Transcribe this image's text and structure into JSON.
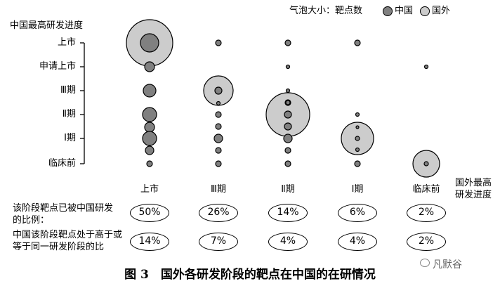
{
  "legend": {
    "size_label": "气泡大小：靶点数",
    "china": "中国",
    "foreign": "国外",
    "china_color": "#808080",
    "foreign_color": "#cccccc"
  },
  "y_axis_title": "中国最高研发进度",
  "x_axis_title": "国外最高研发进度",
  "caption": "图 3　国外各研发阶段的靶点在中国的在研情况",
  "watermark": "凡默谷",
  "stats": {
    "row1_label": "该阶段靶点已被中国研发的比例：",
    "row2_label": "中国该阶段靶点处于高于或等于同一研发阶段的比",
    "row1": [
      "50%",
      "26%",
      "14%",
      "6%",
      "2%"
    ],
    "row2": [
      "14%",
      "7%",
      "4%",
      "4%",
      "2%"
    ]
  },
  "chart_data": {
    "type": "scatter",
    "subtype": "bubble",
    "x_categories": [
      "上市",
      "Ⅲ期",
      "Ⅱ期",
      "Ⅰ期",
      "临床前"
    ],
    "y_categories": [
      "上市",
      "申请上市",
      "Ⅲ期",
      "Ⅱ期",
      "Ⅰ期",
      "临床前"
    ],
    "size_meaning": "气泡大小：靶点数",
    "foreign_bubbles": [
      {
        "x": "上市",
        "y": "上市",
        "size": 33
      },
      {
        "x": "Ⅲ期",
        "y": "Ⅲ期",
        "size": 21
      },
      {
        "x": "Ⅱ期",
        "y": "Ⅱ期",
        "size": 31
      },
      {
        "x": "Ⅰ期",
        "y": "Ⅰ期",
        "size": 23
      },
      {
        "x": "临床前",
        "y": "临床前",
        "size": 19
      }
    ],
    "china_bubbles": [
      {
        "x": "上市",
        "y": "上市",
        "size": 13
      },
      {
        "x": "上市",
        "y": "申请上市",
        "size": 7
      },
      {
        "x": "上市",
        "y": "Ⅲ期",
        "size": 9
      },
      {
        "x": "上市",
        "y": "Ⅱ期",
        "size": 10
      },
      {
        "x": "上市",
        "y": "Ⅱ期",
        "size": 7,
        "offset": 1
      },
      {
        "x": "上市",
        "y": "Ⅰ期",
        "size": 10
      },
      {
        "x": "上市",
        "y": "Ⅰ期",
        "size": 6,
        "offset": 1
      },
      {
        "x": "上市",
        "y": "临床前",
        "size": 4
      },
      {
        "x": "Ⅲ期",
        "y": "上市",
        "size": 4
      },
      {
        "x": "Ⅲ期",
        "y": "Ⅲ期",
        "size": 5
      },
      {
        "x": "Ⅲ期",
        "y": "Ⅲ期",
        "size": 2.5,
        "offset": 1
      },
      {
        "x": "Ⅲ期",
        "y": "Ⅱ期",
        "size": 4
      },
      {
        "x": "Ⅲ期",
        "y": "Ⅱ期",
        "size": 4,
        "offset": 1
      },
      {
        "x": "Ⅲ期",
        "y": "Ⅰ期",
        "size": 6
      },
      {
        "x": "Ⅲ期",
        "y": "Ⅰ期",
        "size": 4,
        "offset": 1
      },
      {
        "x": "Ⅲ期",
        "y": "临床前",
        "size": 4
      },
      {
        "x": "Ⅱ期",
        "y": "上市",
        "size": 4
      },
      {
        "x": "Ⅱ期",
        "y": "申请上市",
        "size": 2.5
      },
      {
        "x": "Ⅱ期",
        "y": "Ⅲ期",
        "size": 2.5
      },
      {
        "x": "Ⅱ期",
        "y": "Ⅲ期",
        "size": 4,
        "offset": 1
      },
      {
        "x": "Ⅱ期",
        "y": "Ⅱ期",
        "size": 3
      },
      {
        "x": "Ⅱ期",
        "y": "Ⅱ期",
        "size": 5,
        "offset": 1
      },
      {
        "x": "Ⅱ期",
        "y": "Ⅱ期",
        "size": 5,
        "offset": 2
      },
      {
        "x": "Ⅱ期",
        "y": "Ⅰ期",
        "size": 6
      },
      {
        "x": "Ⅱ期",
        "y": "Ⅰ期",
        "size": 4,
        "offset": 1
      },
      {
        "x": "Ⅱ期",
        "y": "临床前",
        "size": 4
      },
      {
        "x": "Ⅰ期",
        "y": "上市",
        "size": 4
      },
      {
        "x": "Ⅰ期",
        "y": "Ⅱ期",
        "size": 2.5
      },
      {
        "x": "Ⅰ期",
        "y": "Ⅰ期",
        "size": 2
      },
      {
        "x": "Ⅰ期",
        "y": "Ⅰ期",
        "size": 3,
        "offset": 1
      },
      {
        "x": "Ⅰ期",
        "y": "Ⅰ期",
        "size": 2.5,
        "offset": 2
      },
      {
        "x": "Ⅰ期",
        "y": "临床前",
        "size": 4
      },
      {
        "x": "临床前",
        "y": "申请上市",
        "size": 2.5
      },
      {
        "x": "临床前",
        "y": "临床前",
        "size": 3
      }
    ]
  }
}
